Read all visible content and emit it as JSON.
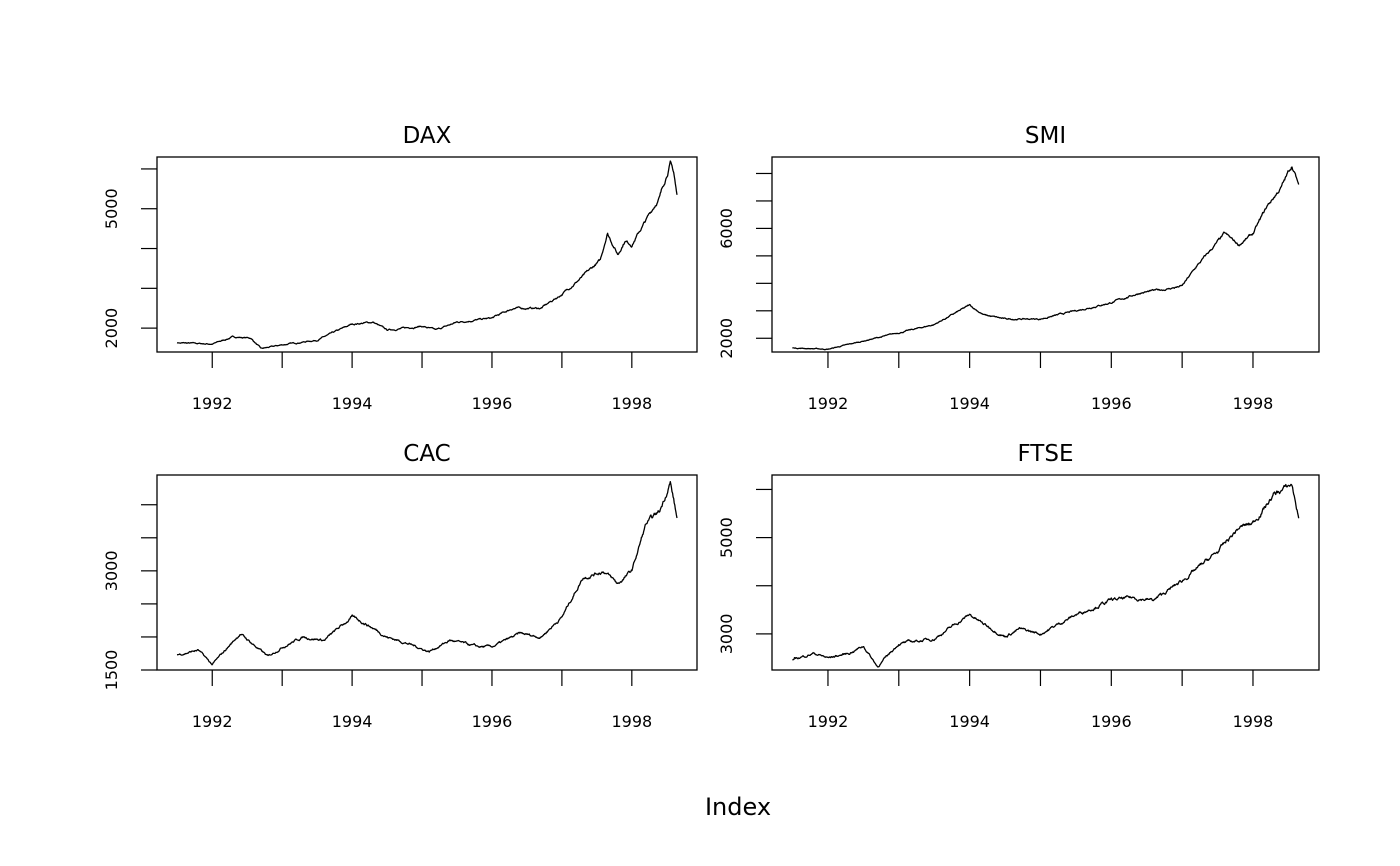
{
  "chart_data": {
    "type": "line",
    "xlabel": "Index",
    "x_range": [
      1991.496,
      1998.646
    ],
    "x_ticks": [
      1992,
      1993,
      1994,
      1995,
      1996,
      1997,
      1998
    ],
    "x_tick_labels": [
      "1992",
      "",
      "1994",
      "",
      "1996",
      "",
      "1998"
    ],
    "panels": [
      {
        "title": "DAX",
        "ylim": [
          1400,
          6300
        ],
        "y_ticks": [
          2000,
          3000,
          4000,
          5000,
          6000
        ],
        "y_tick_labels": [
          "2000",
          "",
          "",
          "5000",
          ""
        ],
        "x": [
          1991.5,
          1992.0,
          1992.3,
          1992.55,
          1992.7,
          1993.0,
          1993.5,
          1994.0,
          1994.3,
          1994.5,
          1995.0,
          1995.2,
          1995.5,
          1996.0,
          1996.3,
          1996.7,
          1997.0,
          1997.3,
          1997.55,
          1997.65,
          1997.8,
          1997.9,
          1998.0,
          1998.2,
          1998.4,
          1998.55,
          1998.6,
          1998.646
        ],
        "y": [
          1630,
          1600,
          1780,
          1750,
          1480,
          1580,
          1700,
          2100,
          2150,
          1950,
          2050,
          1950,
          2150,
          2250,
          2500,
          2500,
          2850,
          3300,
          3700,
          4400,
          3850,
          4200,
          4100,
          4700,
          5300,
          6150,
          5900,
          5350
        ]
      },
      {
        "title": "SMI",
        "ylim": [
          1500,
          8600
        ],
        "y_ticks": [
          2000,
          3000,
          4000,
          5000,
          6000,
          7000,
          8000
        ],
        "y_tick_labels": [
          "2000",
          "",
          "",
          "",
          "6000",
          "",
          ""
        ],
        "x": [
          1991.5,
          1992.0,
          1992.5,
          1993.0,
          1993.5,
          1994.0,
          1994.2,
          1994.5,
          1995.0,
          1995.5,
          1996.0,
          1996.4,
          1996.8,
          1997.0,
          1997.2,
          1997.6,
          1997.8,
          1998.0,
          1998.2,
          1998.4,
          1998.55,
          1998.646
        ],
        "y": [
          1650,
          1600,
          1900,
          2200,
          2500,
          3200,
          2850,
          2700,
          2700,
          3000,
          3300,
          3650,
          3800,
          3900,
          4600,
          5800,
          5400,
          5800,
          6800,
          7500,
          8300,
          7600
        ]
      },
      {
        "title": "CAC",
        "ylim": [
          1500,
          4450
        ],
        "y_ticks": [
          1500,
          2000,
          2500,
          3000,
          3500,
          4000
        ],
        "y_tick_labels": [
          "1500",
          "",
          "",
          "3000",
          "",
          ""
        ],
        "x": [
          1991.5,
          1991.8,
          1992.0,
          1992.4,
          1992.8,
          1993.0,
          1993.3,
          1993.6,
          1994.0,
          1994.2,
          1994.5,
          1994.8,
          1995.1,
          1995.4,
          1995.8,
          1996.0,
          1996.4,
          1996.7,
          1997.0,
          1997.3,
          1997.6,
          1997.8,
          1998.0,
          1998.2,
          1998.4,
          1998.55,
          1998.646
        ],
        "y": [
          1730,
          1800,
          1580,
          2050,
          1700,
          1850,
          2000,
          1950,
          2300,
          2200,
          2000,
          1900,
          1780,
          1950,
          1850,
          1850,
          2050,
          2000,
          2300,
          2900,
          3000,
          2800,
          3000,
          3700,
          3900,
          4350,
          3800
        ]
      },
      {
        "title": "FTSE",
        "ylim": [
          2250,
          6300
        ],
        "y_ticks": [
          3000,
          4000,
          5000,
          6000
        ],
        "y_tick_labels": [
          "3000",
          "",
          "5000",
          ""
        ],
        "x": [
          1991.5,
          1991.8,
          1992.0,
          1992.3,
          1992.5,
          1992.7,
          1993.0,
          1993.5,
          1994.0,
          1994.2,
          1994.5,
          1994.7,
          1995.0,
          1995.5,
          1996.0,
          1996.3,
          1996.6,
          1997.0,
          1997.5,
          1997.8,
          1998.0,
          1998.3,
          1998.55,
          1998.646
        ],
        "y": [
          2460,
          2600,
          2500,
          2600,
          2750,
          2320,
          2800,
          2900,
          3400,
          3200,
          2950,
          3100,
          3000,
          3400,
          3700,
          3750,
          3700,
          4100,
          4700,
          5200,
          5300,
          5900,
          6100,
          5400
        ]
      }
    ]
  }
}
